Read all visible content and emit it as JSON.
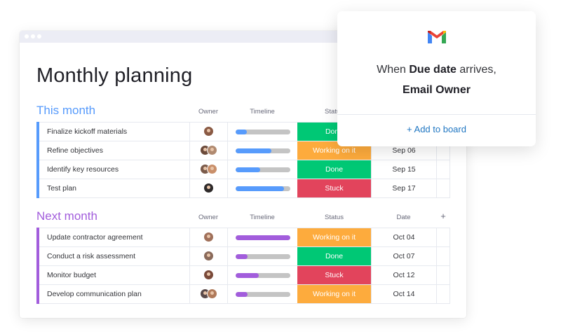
{
  "board": {
    "title": "Monthly planning",
    "columns": {
      "owner": "Owner",
      "timeline": "Timeline",
      "status": "Status",
      "date": "Date",
      "add": "+"
    },
    "groups": [
      {
        "title": "This month",
        "color": "#579bfc",
        "show_headers": [
          "owner",
          "timeline",
          "status"
        ],
        "rows": [
          {
            "name": "Finalize kickoff materials",
            "owners": [
              "#8a5a44"
            ],
            "timeline_progress": 0.2,
            "status": "Done",
            "status_color": "#00c875",
            "date": ""
          },
          {
            "name": "Refine objectives",
            "owners": [
              "#6b4a3a",
              "#b08a70"
            ],
            "timeline_progress": 0.65,
            "status": "Working on it",
            "status_color": "#fdab3d",
            "date": "Sep 06"
          },
          {
            "name": "Identify key resources",
            "owners": [
              "#7a5a4a",
              "#c98f6a"
            ],
            "timeline_progress": 0.45,
            "status": "Done",
            "status_color": "#00c875",
            "date": "Sep 15"
          },
          {
            "name": "Test plan",
            "owners": [
              "#2e2a2a"
            ],
            "timeline_progress": 0.88,
            "status": "Stuck",
            "status_color": "#e2445c",
            "date": "Sep 17"
          }
        ]
      },
      {
        "title": "Next month",
        "color": "#a25ddc",
        "show_headers": [
          "owner",
          "timeline",
          "status",
          "date",
          "add"
        ],
        "rows": [
          {
            "name": "Update contractor agreement",
            "owners": [
              "#a0705a"
            ],
            "timeline_progress": 1.0,
            "status": "Working on it",
            "status_color": "#fdab3d",
            "date": "Oct 04"
          },
          {
            "name": "Conduct a risk assessment",
            "owners": [
              "#8a6a5a"
            ],
            "timeline_progress": 0.22,
            "status": "Done",
            "status_color": "#00c875",
            "date": "Oct 07"
          },
          {
            "name": "Monitor budget",
            "owners": [
              "#7a4a3a"
            ],
            "timeline_progress": 0.42,
            "status": "Stuck",
            "status_color": "#e2445c",
            "date": "Oct 12"
          },
          {
            "name": "Develop communication plan",
            "owners": [
              "#5a4a4a",
              "#b07a5a"
            ],
            "timeline_progress": 0.22,
            "status": "Working on it",
            "status_color": "#fdab3d",
            "date": "Oct 14"
          }
        ]
      }
    ]
  },
  "automation_popup": {
    "icon": "gmail-icon",
    "line1_prefix": "When ",
    "line1_bold": "Due date",
    "line1_suffix": " arrives,",
    "line2": "Email Owner",
    "add_button": "+ Add to board"
  }
}
